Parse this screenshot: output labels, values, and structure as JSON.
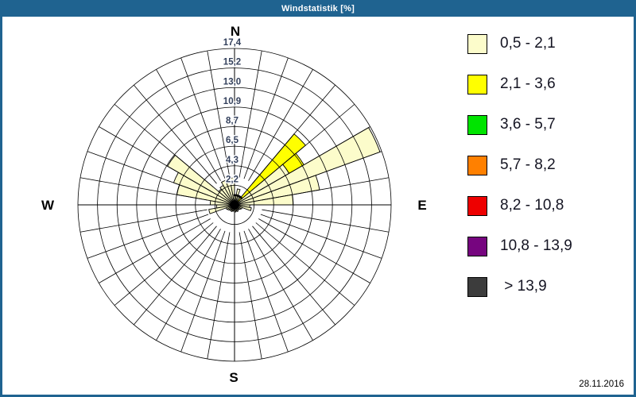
{
  "window": {
    "title": "Windstatistik [%]",
    "date": "28.11.2016"
  },
  "chart_data": {
    "type": "wind-rose",
    "title": "Windstatistik [%]",
    "value_unit": "%",
    "rings": 8,
    "radial_max": 17.4,
    "radial_ticks": [
      "2,2",
      "4,3",
      "6,5",
      "8,7",
      "10,9",
      "13,0",
      "15,2",
      "17,4"
    ],
    "sector_step_deg": 10,
    "compass": {
      "n": "N",
      "e": "E",
      "s": "S",
      "w": "W"
    },
    "speed_classes": [
      {
        "label": "0,5 - 2,1",
        "color": "#fcfccb",
        "speckled": false
      },
      {
        "label": "2,1 - 3,6",
        "color": "#ffff00",
        "speckled": false
      },
      {
        "label": "3,6 - 5,7",
        "color": "#00e400",
        "speckled": false
      },
      {
        "label": "5,7 - 8,2",
        "color": "#ff8000",
        "speckled": false
      },
      {
        "label": "8,2 - 10,8",
        "color": "#ee0000",
        "speckled": false
      },
      {
        "label": "10,8 - 13,9",
        "color": "#76057f",
        "speckled": true
      },
      {
        "label": " > 13,9",
        "color": "#3c3c3c",
        "speckled": true
      }
    ],
    "sectors": [
      {
        "dir": 0,
        "segments": [
          [
            0,
            1.0
          ]
        ]
      },
      {
        "dir": 10,
        "segments": [
          [
            0,
            1.8
          ]
        ]
      },
      {
        "dir": 20,
        "segments": [
          [
            0,
            1.0
          ]
        ]
      },
      {
        "dir": 30,
        "segments": [
          [
            0,
            1.0
          ]
        ]
      },
      {
        "dir": 40,
        "segments": [
          [
            0,
            0.4
          ],
          [
            1,
            9.9
          ]
        ]
      },
      {
        "dir": 50,
        "segments": [
          [
            0,
            7.0
          ],
          [
            1,
            1.9
          ]
        ]
      },
      {
        "dir": 60,
        "segments": [
          [
            0,
            17.2
          ]
        ]
      },
      {
        "dir": 70,
        "segments": [
          [
            0,
            9.6
          ]
        ]
      },
      {
        "dir": 80,
        "segments": [
          [
            0,
            6.5
          ]
        ]
      },
      {
        "dir": 90,
        "segments": [
          [
            0,
            1.7
          ]
        ]
      },
      {
        "dir": 100,
        "segments": [
          [
            0,
            1.9
          ]
        ]
      },
      {
        "dir": 110,
        "segments": [
          [
            0,
            0.9
          ]
        ]
      },
      {
        "dir": 120,
        "segments": [
          [
            0,
            0.8
          ]
        ]
      },
      {
        "dir": 130,
        "segments": [
          [
            0,
            0.7
          ]
        ]
      },
      {
        "dir": 140,
        "segments": [
          [
            0,
            0.7
          ]
        ]
      },
      {
        "dir": 150,
        "segments": [
          [
            0,
            0.8
          ]
        ]
      },
      {
        "dir": 160,
        "segments": [
          [
            0,
            0.7
          ]
        ]
      },
      {
        "dir": 170,
        "segments": [
          [
            0,
            0.8
          ]
        ]
      },
      {
        "dir": 180,
        "segments": [
          [
            0,
            0.7
          ]
        ]
      },
      {
        "dir": 190,
        "segments": [
          [
            0,
            0.7
          ]
        ]
      },
      {
        "dir": 200,
        "segments": [
          [
            0,
            0.8
          ]
        ]
      },
      {
        "dir": 210,
        "segments": [
          [
            0,
            0.7
          ]
        ]
      },
      {
        "dir": 220,
        "segments": [
          [
            0,
            0.8
          ]
        ]
      },
      {
        "dir": 230,
        "segments": [
          [
            0,
            0.9
          ]
        ]
      },
      {
        "dir": 240,
        "segments": [
          [
            0,
            1.0
          ]
        ]
      },
      {
        "dir": 250,
        "segments": [
          [
            0,
            2.9
          ]
        ]
      },
      {
        "dir": 260,
        "segments": [
          [
            0,
            2.0
          ]
        ]
      },
      {
        "dir": 270,
        "segments": [
          [
            0,
            2.7
          ]
        ]
      },
      {
        "dir": 280,
        "segments": [
          [
            0,
            6.5
          ]
        ]
      },
      {
        "dir": 290,
        "segments": [
          [
            0,
            7.2
          ]
        ]
      },
      {
        "dir": 300,
        "segments": [
          [
            0,
            8.6
          ]
        ]
      },
      {
        "dir": 310,
        "segments": [
          [
            0,
            2.3
          ]
        ]
      },
      {
        "dir": 320,
        "segments": [
          [
            0,
            2.5
          ]
        ]
      },
      {
        "dir": 330,
        "segments": [
          [
            0,
            2.9
          ]
        ]
      },
      {
        "dir": 340,
        "segments": [
          [
            0,
            2.9
          ]
        ]
      },
      {
        "dir": 350,
        "segments": [
          [
            0,
            3.0
          ]
        ]
      }
    ],
    "center_arc": {
      "from_deg": -6,
      "to_deg": 52,
      "radius_units": 0.9
    },
    "legend_position": "right",
    "grid": true
  }
}
